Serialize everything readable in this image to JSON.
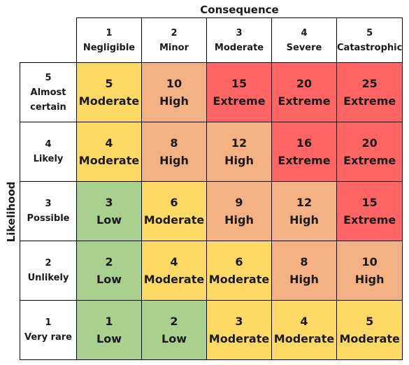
{
  "x_axis_title": "Consequence",
  "y_axis_title": "Likelihood",
  "consequence": [
    {
      "num": "1",
      "label": "Negligible"
    },
    {
      "num": "2",
      "label": "Minor"
    },
    {
      "num": "3",
      "label": "Moderate"
    },
    {
      "num": "4",
      "label": "Severe"
    },
    {
      "num": "5",
      "label": "Catastrophic"
    }
  ],
  "likelihood": [
    {
      "num": "5",
      "label": "Almost certain"
    },
    {
      "num": "4",
      "label": "Likely"
    },
    {
      "num": "3",
      "label": "Possible"
    },
    {
      "num": "2",
      "label": "Unlikely"
    },
    {
      "num": "1",
      "label": "Very rare"
    }
  ],
  "colors": {
    "Low": "#a9d08e",
    "Moderate": "#ffd966",
    "High": "#f4b183",
    "Extreme": "#ff6565"
  },
  "chart_data": {
    "type": "heatmap",
    "x_title": "Consequence",
    "y_title": "Likelihood",
    "rows": [
      [
        {
          "score": "5",
          "level": "Moderate"
        },
        {
          "score": "10",
          "level": "High"
        },
        {
          "score": "15",
          "level": "Extreme"
        },
        {
          "score": "20",
          "level": "Extreme"
        },
        {
          "score": "25",
          "level": "Extreme"
        }
      ],
      [
        {
          "score": "4",
          "level": "Moderate"
        },
        {
          "score": "8",
          "level": "High"
        },
        {
          "score": "12",
          "level": "High"
        },
        {
          "score": "16",
          "level": "Extreme"
        },
        {
          "score": "20",
          "level": "Extreme"
        }
      ],
      [
        {
          "score": "3",
          "level": "Low"
        },
        {
          "score": "6",
          "level": "Moderate"
        },
        {
          "score": "9",
          "level": "High"
        },
        {
          "score": "12",
          "level": "High"
        },
        {
          "score": "15",
          "level": "Extreme"
        }
      ],
      [
        {
          "score": "2",
          "level": "Low"
        },
        {
          "score": "4",
          "level": "Moderate"
        },
        {
          "score": "6",
          "level": "Moderate"
        },
        {
          "score": "8",
          "level": "High"
        },
        {
          "score": "10",
          "level": "High"
        }
      ],
      [
        {
          "score": "1",
          "level": "Low"
        },
        {
          "score": "2",
          "level": "Low"
        },
        {
          "score": "3",
          "level": "Moderate"
        },
        {
          "score": "4",
          "level": "Moderate"
        },
        {
          "score": "5",
          "level": "Moderate"
        }
      ]
    ]
  }
}
